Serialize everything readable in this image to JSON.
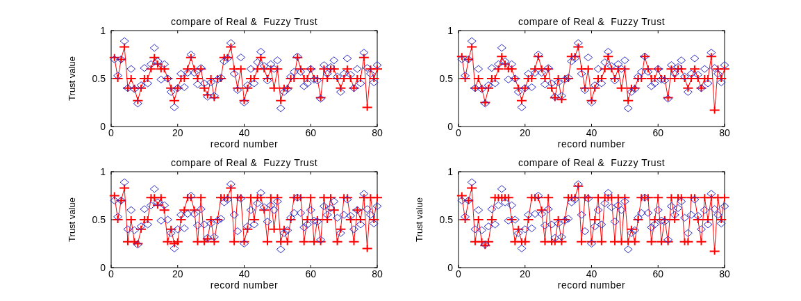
{
  "chart_data": [
    {
      "type": "line",
      "title": "compare of Real &  Fuzzy Trust",
      "xlabel": "record number",
      "ylabel": "Trust value",
      "xlim": [
        0,
        80
      ],
      "xticks": [
        0,
        20,
        40,
        60,
        80
      ],
      "ylim": [
        0,
        1
      ],
      "yticks": [
        0,
        0.5,
        1
      ],
      "x": [
        1,
        2,
        3,
        4,
        5,
        6,
        7,
        8,
        9,
        10,
        11,
        12,
        13,
        14,
        15,
        16,
        17,
        18,
        19,
        20,
        21,
        22,
        23,
        24,
        25,
        26,
        27,
        28,
        29,
        30,
        31,
        32,
        33,
        34,
        35,
        36,
        37,
        38,
        39,
        40,
        41,
        42,
        43,
        44,
        45,
        46,
        47,
        48,
        49,
        50,
        51,
        52,
        53,
        54,
        55,
        56,
        57,
        58,
        59,
        60,
        61,
        62,
        63,
        64,
        65,
        66,
        67,
        68,
        69,
        70,
        71,
        72,
        73,
        74,
        75,
        76,
        77,
        78,
        79,
        80
      ],
      "series": [
        {
          "marker": "cross",
          "color": "#ff0000",
          "values": [
            0.72,
            0.5,
            0.7,
            0.83,
            0.4,
            0.5,
            0.4,
            0.27,
            0.4,
            0.5,
            0.5,
            0.6,
            0.72,
            0.65,
            0.6,
            0.6,
            0.5,
            0.4,
            0.27,
            0.4,
            0.5,
            0.5,
            0.6,
            0.72,
            0.6,
            0.5,
            0.6,
            0.4,
            0.33,
            0.5,
            0.3,
            0.5,
            0.5,
            0.72,
            0.72,
            0.83,
            0.6,
            0.4,
            0.6,
            0.27,
            0.4,
            0.5,
            0.5,
            0.6,
            0.72,
            0.6,
            0.5,
            0.6,
            0.4,
            0.6,
            0.27,
            0.4,
            0.4,
            0.5,
            0.5,
            0.72,
            0.6,
            0.5,
            0.5,
            0.6,
            0.5,
            0.5,
            0.3,
            0.6,
            0.5,
            0.6,
            0.6,
            0.5,
            0.4,
            0.5,
            0.6,
            0.5,
            0.4,
            0.5,
            0.5,
            0.72,
            0.2,
            0.6,
            0.5,
            0.6
          ]
        },
        {
          "type": "scatter",
          "marker": "diamond",
          "color": "#2a2ad0",
          "values": [
            0.7,
            0.53,
            0.7,
            0.89,
            0.4,
            0.6,
            0.39,
            0.24,
            0.43,
            0.61,
            0.45,
            0.65,
            0.82,
            0.68,
            0.49,
            0.65,
            0.5,
            0.36,
            0.2,
            0.4,
            0.55,
            0.41,
            0.56,
            0.75,
            0.56,
            0.44,
            0.61,
            0.45,
            0.31,
            0.46,
            0.32,
            0.49,
            0.51,
            0.68,
            0.71,
            0.87,
            0.55,
            0.38,
            0.72,
            0.25,
            0.43,
            0.6,
            0.45,
            0.67,
            0.78,
            0.63,
            0.48,
            0.65,
            0.6,
            0.69,
            0.19,
            0.36,
            0.39,
            0.52,
            0.57,
            0.73,
            0.57,
            0.42,
            0.45,
            0.6,
            0.49,
            0.48,
            0.29,
            0.64,
            0.55,
            0.62,
            0.69,
            0.52,
            0.36,
            0.55,
            0.71,
            0.54,
            0.4,
            0.6,
            0.45,
            0.77,
            0.61,
            0.55,
            0.46,
            0.64
          ]
        }
      ]
    },
    {
      "type": "line",
      "title": "compare of Real &  Fuzzy Trust",
      "xlabel": "record number",
      "xlim": [
        0,
        80
      ],
      "xticks": [
        0,
        20,
        40,
        60,
        80
      ],
      "ylim": [
        0,
        1
      ],
      "yticks": [
        0,
        0.5,
        1
      ],
      "x": [
        1,
        2,
        3,
        4,
        5,
        6,
        7,
        8,
        9,
        10,
        11,
        12,
        13,
        14,
        15,
        16,
        17,
        18,
        19,
        20,
        21,
        22,
        23,
        24,
        25,
        26,
        27,
        28,
        29,
        30,
        31,
        32,
        33,
        34,
        35,
        36,
        37,
        38,
        39,
        40,
        41,
        42,
        43,
        44,
        45,
        46,
        47,
        48,
        49,
        50,
        51,
        52,
        53,
        54,
        55,
        56,
        57,
        58,
        59,
        60,
        61,
        62,
        63,
        64,
        65,
        66,
        67,
        68,
        69,
        70,
        71,
        72,
        73,
        74,
        75,
        76,
        77,
        78,
        79,
        80
      ],
      "series": [
        {
          "marker": "cross",
          "color": "#ff0000",
          "values": [
            0.73,
            0.5,
            0.7,
            0.83,
            0.4,
            0.5,
            0.4,
            0.25,
            0.4,
            0.5,
            0.5,
            0.6,
            0.73,
            0.65,
            0.6,
            0.6,
            0.5,
            0.4,
            0.27,
            0.4,
            0.5,
            0.5,
            0.6,
            0.73,
            0.6,
            0.5,
            0.6,
            0.4,
            0.3,
            0.5,
            0.28,
            0.5,
            0.5,
            0.73,
            0.73,
            0.83,
            0.6,
            0.4,
            0.6,
            0.27,
            0.4,
            0.5,
            0.5,
            0.6,
            0.73,
            0.6,
            0.5,
            0.6,
            0.4,
            0.6,
            0.27,
            0.4,
            0.4,
            0.5,
            0.5,
            0.73,
            0.6,
            0.5,
            0.5,
            0.6,
            0.5,
            0.5,
            0.3,
            0.6,
            0.5,
            0.6,
            0.6,
            0.5,
            0.4,
            0.5,
            0.6,
            0.5,
            0.4,
            0.5,
            0.5,
            0.73,
            0.17,
            0.6,
            0.5,
            0.6
          ]
        },
        {
          "type": "scatter",
          "marker": "diamond",
          "color": "#2a2ad0",
          "values": [
            0.7,
            0.53,
            0.7,
            0.89,
            0.4,
            0.6,
            0.39,
            0.24,
            0.43,
            0.61,
            0.45,
            0.65,
            0.82,
            0.68,
            0.49,
            0.65,
            0.5,
            0.36,
            0.2,
            0.4,
            0.55,
            0.41,
            0.56,
            0.75,
            0.56,
            0.44,
            0.61,
            0.45,
            0.31,
            0.46,
            0.32,
            0.49,
            0.51,
            0.68,
            0.71,
            0.87,
            0.55,
            0.38,
            0.72,
            0.25,
            0.43,
            0.6,
            0.45,
            0.67,
            0.78,
            0.63,
            0.48,
            0.65,
            0.6,
            0.69,
            0.19,
            0.36,
            0.39,
            0.52,
            0.57,
            0.73,
            0.57,
            0.42,
            0.45,
            0.6,
            0.49,
            0.48,
            0.29,
            0.64,
            0.55,
            0.62,
            0.69,
            0.52,
            0.36,
            0.55,
            0.71,
            0.54,
            0.4,
            0.6,
            0.45,
            0.77,
            0.61,
            0.55,
            0.46,
            0.64
          ]
        }
      ]
    },
    {
      "type": "line",
      "title": "compare of Real &  Fuzzy Trust",
      "xlabel": "record number",
      "ylabel": "Trust value",
      "xlim": [
        0,
        80
      ],
      "xticks": [
        0,
        20,
        40,
        60,
        80
      ],
      "ylim": [
        0,
        1
      ],
      "yticks": [
        0,
        0.5,
        1
      ],
      "x": [
        1,
        2,
        3,
        4,
        5,
        6,
        7,
        8,
        9,
        10,
        11,
        12,
        13,
        14,
        15,
        16,
        17,
        18,
        19,
        20,
        21,
        22,
        23,
        24,
        25,
        26,
        27,
        28,
        29,
        30,
        31,
        32,
        33,
        34,
        35,
        36,
        37,
        38,
        39,
        40,
        41,
        42,
        43,
        44,
        45,
        46,
        47,
        48,
        49,
        50,
        51,
        52,
        53,
        54,
        55,
        56,
        57,
        58,
        59,
        60,
        61,
        62,
        63,
        64,
        65,
        66,
        67,
        68,
        69,
        70,
        71,
        72,
        73,
        74,
        75,
        76,
        77,
        78,
        79,
        80
      ],
      "series": [
        {
          "marker": "cross",
          "color": "#ff0000",
          "values": [
            0.75,
            0.5,
            0.7,
            0.83,
            0.27,
            0.5,
            0.27,
            0.25,
            0.4,
            0.5,
            0.5,
            0.73,
            0.73,
            0.65,
            0.73,
            0.6,
            0.27,
            0.4,
            0.25,
            0.27,
            0.5,
            0.6,
            0.73,
            0.73,
            0.6,
            0.27,
            0.73,
            0.27,
            0.3,
            0.5,
            0.27,
            0.5,
            0.73,
            0.73,
            0.73,
            0.83,
            0.27,
            0.73,
            0.73,
            0.27,
            0.4,
            0.73,
            0.5,
            0.73,
            0.73,
            0.6,
            0.27,
            0.73,
            0.4,
            0.73,
            0.27,
            0.4,
            0.27,
            0.5,
            0.73,
            0.73,
            0.73,
            0.27,
            0.5,
            0.73,
            0.27,
            0.5,
            0.27,
            0.73,
            0.5,
            0.73,
            0.6,
            0.27,
            0.4,
            0.73,
            0.73,
            0.5,
            0.27,
            0.6,
            0.5,
            0.73,
            0.2,
            0.73,
            0.5,
            0.73
          ]
        },
        {
          "type": "scatter",
          "marker": "diamond",
          "color": "#2a2ad0",
          "values": [
            0.7,
            0.53,
            0.7,
            0.89,
            0.4,
            0.6,
            0.39,
            0.24,
            0.43,
            0.61,
            0.45,
            0.65,
            0.82,
            0.68,
            0.49,
            0.65,
            0.5,
            0.36,
            0.2,
            0.4,
            0.55,
            0.41,
            0.56,
            0.75,
            0.56,
            0.44,
            0.61,
            0.45,
            0.31,
            0.46,
            0.32,
            0.49,
            0.51,
            0.68,
            0.71,
            0.87,
            0.55,
            0.38,
            0.72,
            0.25,
            0.43,
            0.6,
            0.45,
            0.67,
            0.78,
            0.63,
            0.48,
            0.65,
            0.6,
            0.69,
            0.19,
            0.36,
            0.39,
            0.52,
            0.57,
            0.73,
            0.57,
            0.42,
            0.45,
            0.6,
            0.49,
            0.48,
            0.29,
            0.64,
            0.55,
            0.62,
            0.69,
            0.52,
            0.36,
            0.55,
            0.71,
            0.54,
            0.4,
            0.6,
            0.45,
            0.77,
            0.61,
            0.55,
            0.46,
            0.64
          ]
        }
      ]
    },
    {
      "type": "line",
      "title": "compare of Real &  Fuzzy Trust",
      "xlabel": "record number",
      "ylabel": "Trust value",
      "xlim": [
        0,
        80
      ],
      "xticks": [
        0,
        20,
        40,
        60,
        80
      ],
      "ylim": [
        0,
        1
      ],
      "yticks": [
        0,
        0.5,
        1
      ],
      "x": [
        1,
        2,
        3,
        4,
        5,
        6,
        7,
        8,
        9,
        10,
        11,
        12,
        13,
        14,
        15,
        16,
        17,
        18,
        19,
        20,
        21,
        22,
        23,
        24,
        25,
        26,
        27,
        28,
        29,
        30,
        31,
        32,
        33,
        34,
        35,
        36,
        37,
        38,
        39,
        40,
        41,
        42,
        43,
        44,
        45,
        46,
        47,
        48,
        49,
        50,
        51,
        52,
        53,
        54,
        55,
        56,
        57,
        58,
        59,
        60,
        61,
        62,
        63,
        64,
        65,
        66,
        67,
        68,
        69,
        70,
        71,
        72,
        73,
        74,
        75,
        76,
        77,
        78,
        79,
        80
      ],
      "series": [
        {
          "marker": "cross",
          "color": "#ff0000",
          "values": [
            0.75,
            0.5,
            0.7,
            0.83,
            0.27,
            0.5,
            0.27,
            0.23,
            0.27,
            0.5,
            0.73,
            0.73,
            0.73,
            0.73,
            0.73,
            0.5,
            0.27,
            0.4,
            0.27,
            0.27,
            0.5,
            0.73,
            0.73,
            0.73,
            0.6,
            0.27,
            0.73,
            0.27,
            0.27,
            0.5,
            0.27,
            0.5,
            0.73,
            0.73,
            0.73,
            0.85,
            0.27,
            0.73,
            0.73,
            0.27,
            0.5,
            0.73,
            0.27,
            0.73,
            0.73,
            0.73,
            0.27,
            0.73,
            0.27,
            0.73,
            0.27,
            0.4,
            0.27,
            0.5,
            0.73,
            0.73,
            0.73,
            0.27,
            0.5,
            0.73,
            0.27,
            0.5,
            0.27,
            0.73,
            0.5,
            0.73,
            0.73,
            0.27,
            0.27,
            0.73,
            0.73,
            0.5,
            0.27,
            0.73,
            0.5,
            0.73,
            0.17,
            0.73,
            0.5,
            0.73
          ]
        },
        {
          "type": "scatter",
          "marker": "diamond",
          "color": "#2a2ad0",
          "values": [
            0.7,
            0.53,
            0.7,
            0.89,
            0.4,
            0.6,
            0.39,
            0.24,
            0.43,
            0.61,
            0.45,
            0.65,
            0.82,
            0.68,
            0.49,
            0.65,
            0.5,
            0.36,
            0.2,
            0.4,
            0.55,
            0.41,
            0.56,
            0.75,
            0.56,
            0.44,
            0.61,
            0.45,
            0.31,
            0.46,
            0.32,
            0.49,
            0.51,
            0.68,
            0.71,
            0.87,
            0.55,
            0.38,
            0.72,
            0.25,
            0.43,
            0.6,
            0.45,
            0.67,
            0.78,
            0.63,
            0.48,
            0.65,
            0.6,
            0.69,
            0.19,
            0.36,
            0.39,
            0.52,
            0.57,
            0.73,
            0.57,
            0.42,
            0.45,
            0.6,
            0.49,
            0.48,
            0.29,
            0.64,
            0.55,
            0.62,
            0.69,
            0.52,
            0.36,
            0.55,
            0.71,
            0.54,
            0.4,
            0.6,
            0.45,
            0.77,
            0.61,
            0.55,
            0.46,
            0.64
          ]
        }
      ]
    }
  ]
}
